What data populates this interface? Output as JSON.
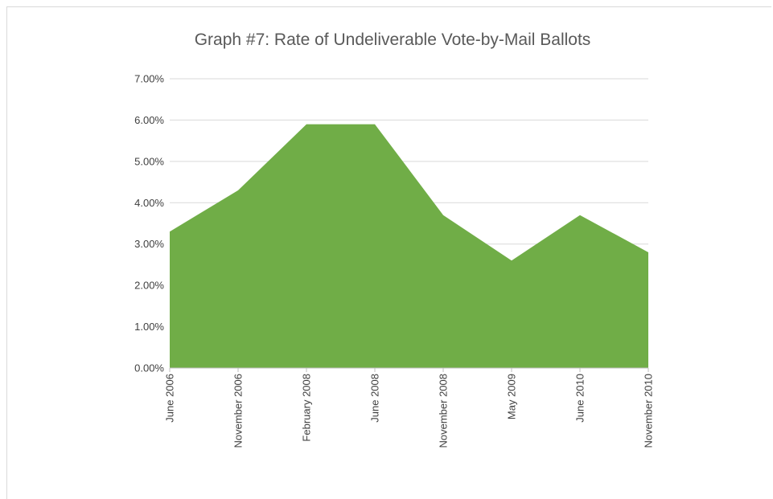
{
  "chart_data": {
    "type": "area",
    "title": "Graph #7: Rate of Undeliverable Vote-by-Mail Ballots",
    "categories": [
      "June 2006",
      "November 2006",
      "February 2008",
      "June 2008",
      "November 2008",
      "May 2009",
      "June 2010",
      "November 2010"
    ],
    "series": [
      {
        "values": [
          3.3,
          4.3,
          5.9,
          5.9,
          3.7,
          2.6,
          3.7,
          2.8
        ]
      }
    ],
    "ylim": [
      0,
      7
    ],
    "yticks": [
      "0.00%",
      "1.00%",
      "2.00%",
      "3.00%",
      "4.00%",
      "5.00%",
      "6.00%",
      "7.00%"
    ],
    "grid": true,
    "legend": "none",
    "colors": {
      "area": "#70ad47",
      "grid": "#d9d9d9",
      "axis": "#bfbfbf"
    }
  }
}
